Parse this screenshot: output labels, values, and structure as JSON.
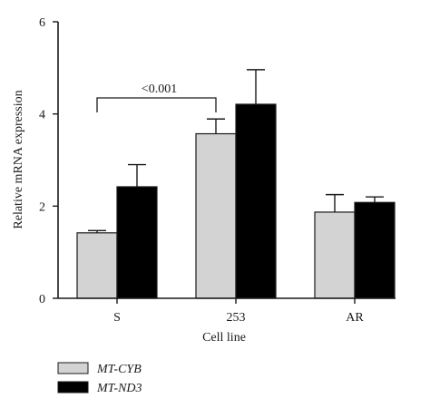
{
  "chart_data": {
    "type": "bar",
    "title": "",
    "xlabel": "Cell line",
    "ylabel": "Relative mRNA expression",
    "categories": [
      "S",
      "253",
      "AR"
    ],
    "ylim": [
      0,
      6
    ],
    "yticks": [
      0,
      2,
      4,
      6
    ],
    "grid": false,
    "legend_position": "bottom-left",
    "series": [
      {
        "name": "MT-CYB",
        "color": "#d3d3d3",
        "values": [
          1.42,
          3.57,
          1.87
        ],
        "errors": [
          0.05,
          0.32,
          0.38
        ]
      },
      {
        "name": "MT-ND3",
        "color": "#000000",
        "values": [
          2.42,
          4.21,
          2.08
        ],
        "errors": [
          0.48,
          0.75,
          0.12
        ]
      }
    ],
    "annotations": [
      {
        "text": "<0.001",
        "from_category": "S",
        "to_category": "253"
      }
    ]
  }
}
